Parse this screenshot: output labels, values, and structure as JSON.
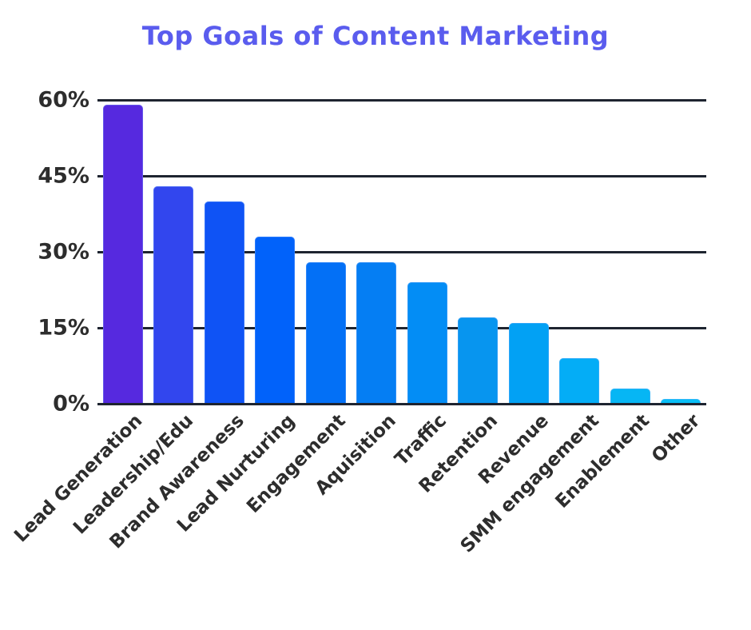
{
  "title": "Top Goals of Content Marketing",
  "colors": {
    "background": "#ffffff",
    "title_text": "#5a5cee",
    "gridline": "#1e2430",
    "axis_text": "#2d2d2d",
    "bar_colors": [
      "#5629df",
      "#3246ee",
      "#0f53f5",
      "#0162fa",
      "#0370f6",
      "#057ef3",
      "#038df5",
      "#0795ef",
      "#02a1f4",
      "#04adf6",
      "#06b6f4",
      "#08bef6"
    ]
  },
  "chart_data": {
    "type": "bar",
    "title": "Top Goals of Content Marketing",
    "categories": [
      "Lead Generation",
      "Leadership/Edu",
      "Brand Awareness",
      "Lead Nurturing",
      "Engagement",
      "Aquisition",
      "Traffic",
      "Retention",
      "Revenue",
      "SMM engagement",
      "Enablement",
      "Other"
    ],
    "values": [
      59,
      43,
      40,
      33,
      28,
      28,
      24,
      17,
      16,
      9,
      3,
      1
    ],
    "unit": "%",
    "xlabel": "",
    "ylabel": "",
    "ylim": [
      0,
      60
    ],
    "yticks": [
      {
        "label": "60%",
        "value": 60
      },
      {
        "label": "45%",
        "value": 45
      },
      {
        "label": "30%",
        "value": 30
      },
      {
        "label": "15%",
        "value": 15
      },
      {
        "label": "0%",
        "value": 0
      }
    ],
    "grid": "horizontal",
    "legend": "none",
    "bar_corner_radius": "rounded-top",
    "x_label_rotation_deg": 45
  }
}
